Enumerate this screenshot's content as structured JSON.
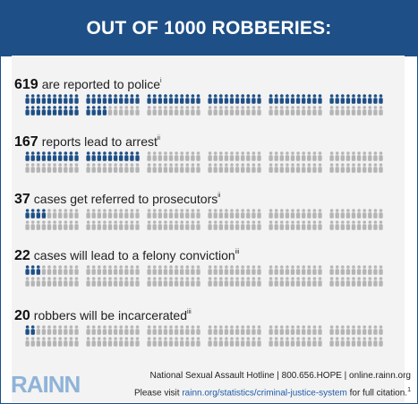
{
  "header": {
    "title": "OUT OF 1000 ROBBERIES:"
  },
  "stats": [
    {
      "num": "619",
      "text": "are reported to police",
      "sup": "i",
      "count": 619
    },
    {
      "num": "167",
      "text": "reports lead to arrest",
      "sup": "ii",
      "count": 167
    },
    {
      "num": "37",
      "text": "cases get referred to prosecutors",
      "sup": "ii",
      "count": 37
    },
    {
      "num": "22",
      "text": "cases will lead to a felony conviction",
      "sup": "iii",
      "count": 22
    },
    {
      "num": "20",
      "text": "robbers will be incarcerated",
      "sup": "iii",
      "count": 20
    }
  ],
  "colors": {
    "filled": "#1e4f86",
    "empty": "#b5b5b5",
    "header": "#1e4f86"
  },
  "footer": {
    "logo": "RAINN",
    "hotline": "National Sexual Assault Hotline | 800.656.HOPE | online.rainn.org",
    "visit_prefix": "Please visit ",
    "link": "rainn.org/statistics/criminal-justice-system",
    "visit_suffix": " for full citation.",
    "sup": "1"
  }
}
